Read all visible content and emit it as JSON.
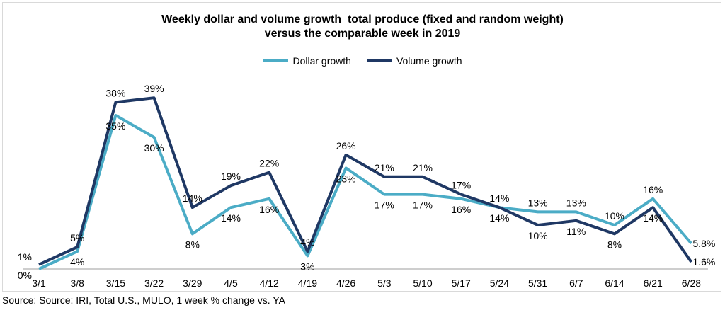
{
  "chart_data": {
    "type": "line",
    "title_lines": [
      "Weekly dollar and volume growth  total produce (fixed and random weight)",
      "versus the comparable week in 2019"
    ],
    "categories": [
      "3/1",
      "3/8",
      "3/15",
      "3/22",
      "3/29",
      "4/5",
      "4/12",
      "4/19",
      "4/26",
      "5/3",
      "5/10",
      "5/17",
      "5/24",
      "5/31",
      "6/7",
      "6/14",
      "6/21",
      "6/28"
    ],
    "ylim": [
      0,
      42
    ],
    "grid": false,
    "legend_position": "top-center",
    "series": [
      {
        "name": "Dollar growth",
        "color": "#4bacc6",
        "values": [
          0,
          4,
          35,
          30,
          8,
          14,
          16,
          3,
          23,
          17,
          17,
          16,
          14,
          13,
          13,
          10,
          16,
          5.8
        ],
        "labels": [
          "0%",
          "4%",
          "35%",
          "30%",
          "8%",
          "14%",
          "16%",
          "3%",
          "23%",
          "17%",
          "17%",
          "16%",
          "14%",
          "13%",
          "13%",
          "10%",
          "16%",
          "5.8%"
        ]
      },
      {
        "name": "Volume growth",
        "color": "#1f3864",
        "values": [
          1,
          5,
          38,
          39,
          14,
          19,
          22,
          4,
          26,
          21,
          21,
          17,
          14,
          10,
          11,
          8,
          14,
          1.6
        ],
        "labels": [
          "1%",
          "5%",
          "38%",
          "39%",
          "14%",
          "19%",
          "22%",
          "4%",
          "26%",
          "21%",
          "21%",
          "17%",
          "14%",
          "10%",
          "11%",
          "8%",
          "14%",
          "1.6%"
        ]
      }
    ]
  },
  "source": "Source: Source: IRI, Total U.S., MULO, 1 week % change vs. YA"
}
